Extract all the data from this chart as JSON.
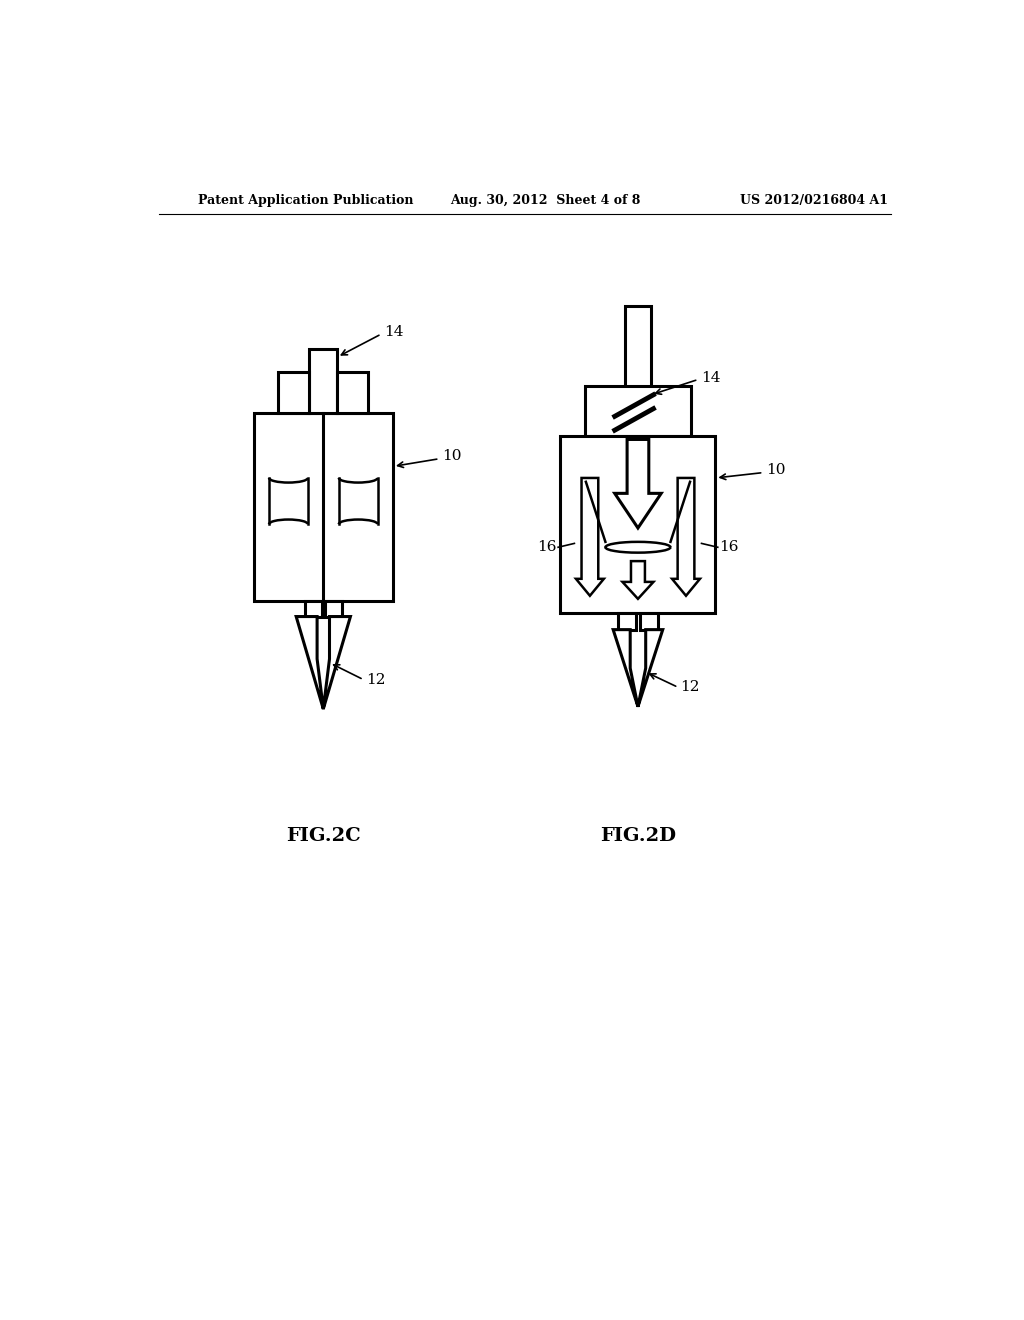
{
  "bg_color": "#ffffff",
  "line_color": "#000000",
  "lw": 1.8,
  "lw_thick": 2.2,
  "fig2c_label": "FIG.2C",
  "fig2d_label": "FIG.2D",
  "header_left": "Patent Application Publication",
  "header_mid": "Aug. 30, 2012  Sheet 4 of 8",
  "header_right": "US 2012/0216804 A1",
  "label_10": "10",
  "label_12": "12",
  "label_14": "14",
  "label_16": "16"
}
